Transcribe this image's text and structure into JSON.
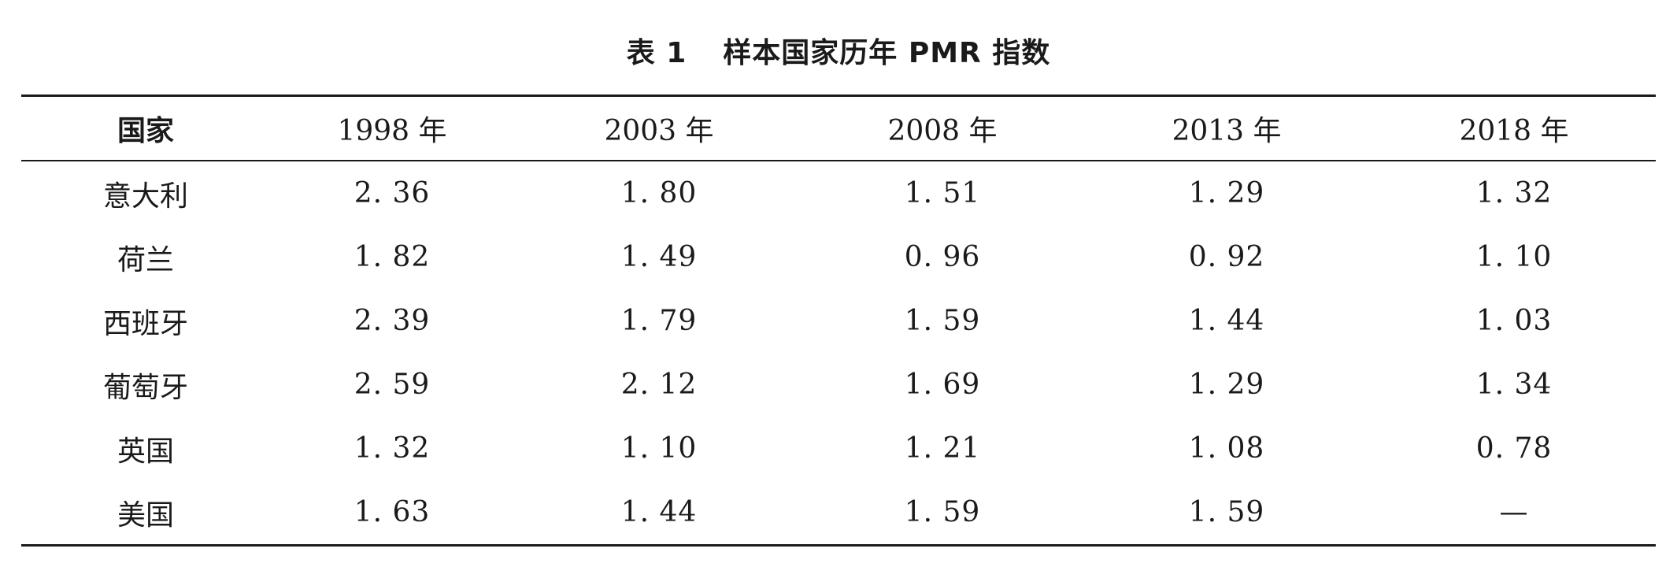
{
  "caption": {
    "label": "表 1",
    "title": "样本国家历年 PMR 指数"
  },
  "table": {
    "headers": [
      "国家",
      "1998 年",
      "2003 年",
      "2008 年",
      "2013 年",
      "2018 年"
    ],
    "rows": [
      [
        "意大利",
        "2. 36",
        "1. 80",
        "1. 51",
        "1. 29",
        "1. 32"
      ],
      [
        "荷兰",
        "1. 82",
        "1. 49",
        "0. 96",
        "0. 92",
        "1. 10"
      ],
      [
        "西班牙",
        "2. 39",
        "1. 79",
        "1. 59",
        "1. 44",
        "1. 03"
      ],
      [
        "葡萄牙",
        "2. 59",
        "2. 12",
        "1. 69",
        "1. 29",
        "1. 34"
      ],
      [
        "英国",
        "1. 32",
        "1. 10",
        "1. 21",
        "1. 08",
        "0. 78"
      ],
      [
        "美国",
        "1. 63",
        "1. 44",
        "1. 59",
        "1. 59",
        "—"
      ]
    ]
  }
}
